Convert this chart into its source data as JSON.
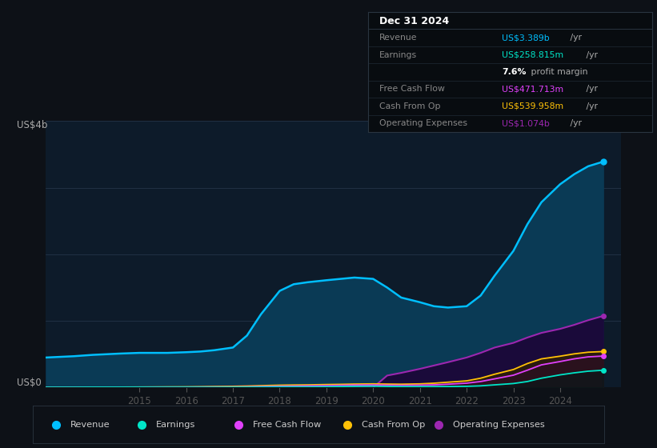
{
  "bg_color": "#0d1117",
  "plot_bg_color": "#0d1b2a",
  "grid_color": "#243447",
  "years": [
    2013.0,
    2013.3,
    2013.6,
    2014.0,
    2014.3,
    2014.6,
    2015.0,
    2015.3,
    2015.6,
    2016.0,
    2016.3,
    2016.6,
    2017.0,
    2017.3,
    2017.6,
    2018.0,
    2018.3,
    2018.6,
    2019.0,
    2019.3,
    2019.6,
    2020.0,
    2020.3,
    2020.6,
    2021.0,
    2021.3,
    2021.6,
    2022.0,
    2022.3,
    2022.6,
    2023.0,
    2023.3,
    2023.6,
    2024.0,
    2024.3,
    2024.6,
    2024.92
  ],
  "revenue": [
    0.45,
    0.46,
    0.47,
    0.49,
    0.5,
    0.51,
    0.52,
    0.52,
    0.52,
    0.53,
    0.54,
    0.56,
    0.6,
    0.78,
    1.1,
    1.45,
    1.55,
    1.58,
    1.61,
    1.63,
    1.65,
    1.63,
    1.5,
    1.35,
    1.28,
    1.22,
    1.2,
    1.22,
    1.38,
    1.68,
    2.05,
    2.45,
    2.78,
    3.05,
    3.2,
    3.32,
    3.389
  ],
  "earnings": [
    0.004,
    0.004,
    0.004,
    0.005,
    0.005,
    0.005,
    0.005,
    0.004,
    0.004,
    0.004,
    0.004,
    0.004,
    0.005,
    0.006,
    0.008,
    0.01,
    0.01,
    0.01,
    0.012,
    0.015,
    0.018,
    0.02,
    0.016,
    0.014,
    0.014,
    0.014,
    0.015,
    0.018,
    0.025,
    0.04,
    0.06,
    0.09,
    0.14,
    0.19,
    0.22,
    0.245,
    0.259
  ],
  "free_cash_flow": [
    0.003,
    0.003,
    0.003,
    0.004,
    0.004,
    0.004,
    0.005,
    0.005,
    0.005,
    0.006,
    0.007,
    0.008,
    0.009,
    0.011,
    0.015,
    0.02,
    0.022,
    0.025,
    0.028,
    0.032,
    0.036,
    0.038,
    0.034,
    0.032,
    0.035,
    0.04,
    0.05,
    0.065,
    0.09,
    0.13,
    0.185,
    0.26,
    0.34,
    0.39,
    0.43,
    0.46,
    0.472
  ],
  "cash_from_op": [
    0.004,
    0.004,
    0.005,
    0.005,
    0.006,
    0.006,
    0.007,
    0.008,
    0.009,
    0.01,
    0.012,
    0.015,
    0.018,
    0.022,
    0.028,
    0.035,
    0.038,
    0.04,
    0.045,
    0.048,
    0.052,
    0.055,
    0.052,
    0.05,
    0.055,
    0.065,
    0.08,
    0.1,
    0.14,
    0.2,
    0.27,
    0.36,
    0.43,
    0.47,
    0.505,
    0.53,
    0.54
  ],
  "op_expenses": [
    0.0,
    0.0,
    0.0,
    0.0,
    0.0,
    0.0,
    0.0,
    0.0,
    0.0,
    0.0,
    0.0,
    0.0,
    0.0,
    0.0,
    0.0,
    0.0,
    0.0,
    0.0,
    0.0,
    0.0,
    0.0,
    0.0,
    0.18,
    0.22,
    0.28,
    0.33,
    0.38,
    0.45,
    0.52,
    0.6,
    0.67,
    0.75,
    0.82,
    0.88,
    0.94,
    1.01,
    1.074
  ],
  "revenue_color": "#00bfff",
  "earnings_color": "#00e5c8",
  "fcf_color": "#e040fb",
  "cfop_color": "#ffc107",
  "opex_color": "#9c27b0",
  "revenue_fill": "#0a3a55",
  "opex_fill": "#1a0a3a",
  "legend_items": [
    "Revenue",
    "Earnings",
    "Free Cash Flow",
    "Cash From Op",
    "Operating Expenses"
  ],
  "legend_colors": [
    "#00bfff",
    "#00e5c8",
    "#e040fb",
    "#ffc107",
    "#9c27b0"
  ],
  "ylim": [
    0,
    4.0
  ],
  "xlim": [
    2013.0,
    2025.3
  ],
  "xticks": [
    2015,
    2016,
    2017,
    2018,
    2019,
    2020,
    2021,
    2022,
    2023,
    2024
  ],
  "grid_yticks": [
    1.0,
    2.0,
    3.0,
    4.0
  ],
  "info_box": {
    "title": "Dec 31 2024",
    "rows": [
      {
        "label": "Revenue",
        "value_colored": "US$3.389b",
        "value_suffix": " /yr",
        "value_color": "#00bfff"
      },
      {
        "label": "Earnings",
        "value_colored": "US$258.815m",
        "value_suffix": " /yr",
        "value_color": "#00e5c8"
      },
      {
        "label": "",
        "value_colored": "7.6%",
        "value_suffix": " profit margin",
        "value_color": "#ffffff",
        "is_margin": true
      },
      {
        "label": "Free Cash Flow",
        "value_colored": "US$471.713m",
        "value_suffix": " /yr",
        "value_color": "#e040fb"
      },
      {
        "label": "Cash From Op",
        "value_colored": "US$539.958m",
        "value_suffix": " /yr",
        "value_color": "#ffc107"
      },
      {
        "label": "Operating Expenses",
        "value_colored": "US$1.074b",
        "value_suffix": " /yr",
        "value_color": "#9c27b0"
      }
    ]
  }
}
